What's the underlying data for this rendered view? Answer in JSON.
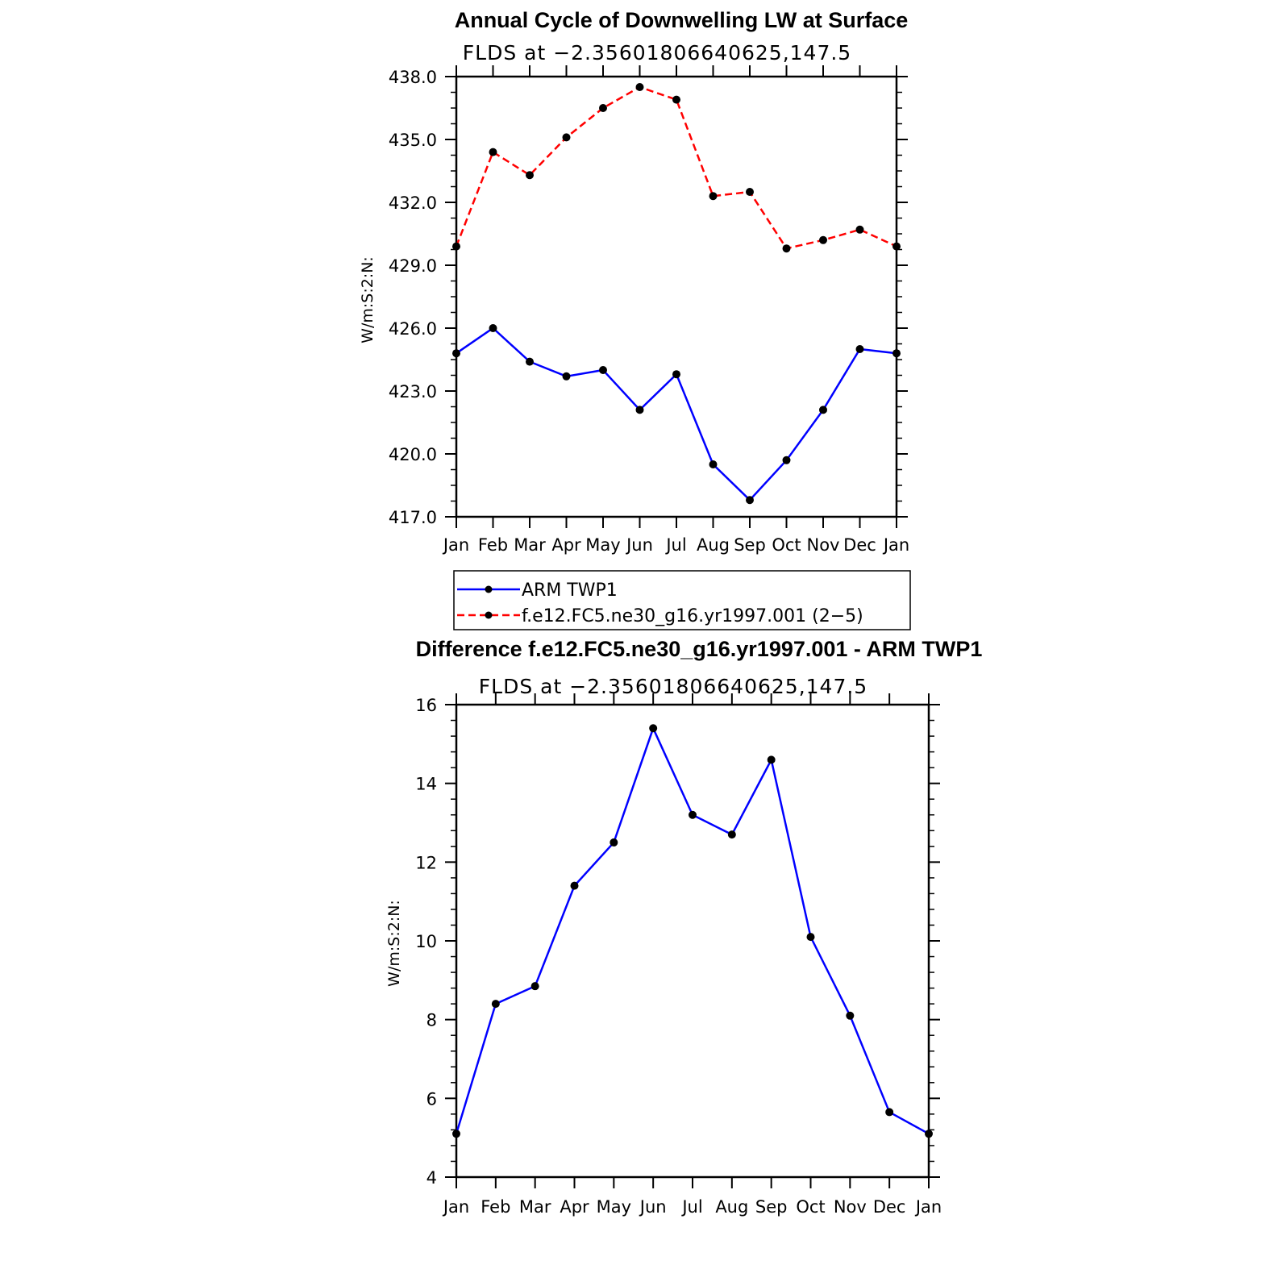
{
  "chart_data": [
    {
      "type": "line",
      "title": "Annual Cycle of Downwelling LW at Surface",
      "subtitle": "FLDS at −2.35601806640625,147.5",
      "ylabel": "W/m:S:2:N:",
      "xlabel": "",
      "categories": [
        "Jan",
        "Feb",
        "Mar",
        "Apr",
        "May",
        "Jun",
        "Jul",
        "Aug",
        "Sep",
        "Oct",
        "Nov",
        "Dec",
        "Jan"
      ],
      "ylim": [
        417.0,
        438.0
      ],
      "yticks": [
        "417.0",
        "420.0",
        "423.0",
        "426.0",
        "429.0",
        "432.0",
        "435.0",
        "438.0"
      ],
      "series": [
        {
          "name": "ARM TWP1",
          "color": "#0000ff",
          "dash": "solid",
          "values": [
            424.8,
            426.0,
            424.4,
            423.7,
            424.0,
            422.1,
            423.8,
            419.5,
            417.8,
            419.7,
            422.1,
            425.0,
            424.8
          ]
        },
        {
          "name": "f.e12.FC5.ne30_g16.yr1997.001 (2−5)",
          "color": "#ff0000",
          "dash": "dashed",
          "values": [
            429.9,
            434.4,
            433.3,
            435.1,
            436.5,
            437.5,
            436.9,
            432.3,
            432.5,
            429.8,
            430.2,
            430.7,
            429.9
          ]
        }
      ],
      "legend": [
        "ARM TWP1",
        "f.e12.FC5.ne30_g16.yr1997.001 (2−5)"
      ],
      "legend_position": "below"
    },
    {
      "type": "line",
      "title": "Difference f.e12.FC5.ne30_g16.yr1997.001 - ARM TWP1",
      "subtitle": "FLDS at −2.35601806640625,147.5",
      "ylabel": "W/m:S:2:N:",
      "xlabel": "",
      "categories": [
        "Jan",
        "Feb",
        "Mar",
        "Apr",
        "May",
        "Jun",
        "Jul",
        "Aug",
        "Sep",
        "Oct",
        "Nov",
        "Dec",
        "Jan"
      ],
      "ylim": [
        4,
        16
      ],
      "yticks": [
        "4",
        "6",
        "8",
        "10",
        "12",
        "14",
        "16"
      ],
      "series": [
        {
          "name": "Difference",
          "color": "#0000ff",
          "dash": "solid",
          "values": [
            5.1,
            8.4,
            8.85,
            11.4,
            12.5,
            15.4,
            13.2,
            12.7,
            14.6,
            10.1,
            8.1,
            5.65,
            5.1
          ]
        }
      ]
    }
  ]
}
